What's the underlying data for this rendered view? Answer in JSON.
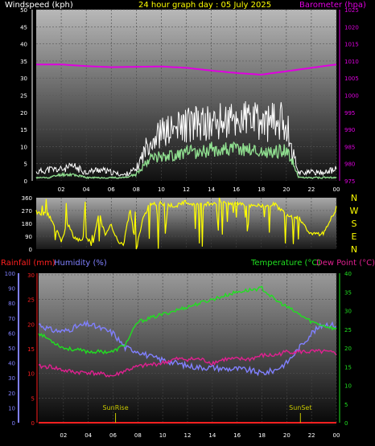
{
  "colors": {
    "background": "#000000",
    "wind_label": "#ffffff",
    "gust": "#ffffff",
    "wind_avg": "#90e090",
    "baro": "#e000e0",
    "title": "#ffff00",
    "direction": "#ffff00",
    "rain": "#ff2020",
    "humidity": "#8080ff",
    "temperature": "#20e020",
    "dewpoint": "#e02090",
    "sun_marker": "#c8c800"
  },
  "chart_data": [
    {
      "id": "wind_baro",
      "type": "line",
      "title": "24 hour graph day : 05 July 2025",
      "left_axis_label": "Windspeed (kph)",
      "right_axis_label": "Barometer (hpa)",
      "x_tick_labels": [
        "02",
        "04",
        "06",
        "08",
        "10",
        "12",
        "14",
        "16",
        "18",
        "20",
        "22",
        "00"
      ],
      "y_left_ticks": [
        "0",
        "5",
        "10",
        "15",
        "20",
        "25",
        "30",
        "35",
        "40",
        "45",
        "50"
      ],
      "y_right_ticks": [
        "975",
        "980",
        "985",
        "990",
        "995",
        "1000",
        "1005",
        "1010",
        "1015",
        "1020",
        "1025"
      ],
      "ylim_left": [
        0,
        50
      ],
      "ylim_right": [
        975,
        1025
      ],
      "xlim": [
        0,
        24
      ],
      "series": [
        {
          "name": "Gust",
          "axis": "left",
          "x": [
            0,
            1,
            2,
            3,
            4,
            5,
            6,
            7,
            8,
            9,
            10,
            11,
            12,
            13,
            14,
            15,
            16,
            17,
            18,
            19,
            20,
            20.5,
            21,
            22,
            23,
            24
          ],
          "values": [
            3,
            4,
            4,
            5,
            3,
            4,
            3,
            2,
            4,
            14,
            17,
            18,
            20,
            20,
            20,
            21,
            21,
            22,
            20,
            21,
            21,
            10,
            3,
            3,
            3,
            4
          ]
        },
        {
          "name": "Average",
          "axis": "left",
          "x": [
            0,
            1,
            2,
            3,
            4,
            5,
            6,
            7,
            8,
            9,
            10,
            11,
            12,
            13,
            14,
            15,
            16,
            17,
            18,
            19,
            20,
            20.5,
            21,
            22,
            23,
            24
          ],
          "values": [
            1,
            1,
            2,
            2,
            1,
            1,
            1,
            1,
            2,
            7,
            8,
            8,
            9,
            9,
            10,
            10,
            10,
            10,
            9,
            9,
            10,
            6,
            1,
            1,
            1,
            1
          ]
        },
        {
          "name": "Barometer",
          "axis": "right",
          "x": [
            0,
            2,
            4,
            6,
            8,
            10,
            12,
            14,
            16,
            18,
            20,
            22,
            24
          ],
          "values": [
            1009,
            1009,
            1008.5,
            1008.2,
            1008.3,
            1008.4,
            1008,
            1007.2,
            1006.5,
            1006,
            1007,
            1008,
            1009
          ]
        }
      ]
    },
    {
      "id": "direction",
      "type": "line",
      "right_axis_labels": [
        "N",
        "W",
        "S",
        "E",
        "N"
      ],
      "y_ticks": [
        "0",
        "90",
        "180",
        "270",
        "360"
      ],
      "ylim": [
        0,
        360
      ],
      "xlim": [
        0,
        24
      ],
      "series": [
        {
          "name": "Wind direction",
          "x": [
            0,
            0.5,
            1,
            1.5,
            2,
            2.5,
            3,
            3.5,
            4,
            4.5,
            5,
            5.5,
            6,
            6.5,
            7,
            7.5,
            8,
            8.5,
            9,
            10,
            11,
            12,
            13,
            14,
            15,
            16,
            17,
            18,
            19,
            20,
            20.5,
            21,
            22,
            23,
            24
          ],
          "values": [
            260,
            250,
            240,
            150,
            60,
            180,
            80,
            60,
            90,
            20,
            260,
            100,
            170,
            60,
            40,
            280,
            0,
            200,
            310,
            320,
            300,
            330,
            310,
            320,
            330,
            320,
            310,
            300,
            320,
            240,
            230,
            220,
            100,
            110,
            290
          ]
        }
      ]
    },
    {
      "id": "temp_hum",
      "type": "line",
      "left_axis_labels": [
        "Rainfall (mm)",
        "Humidity (%)"
      ],
      "right_axis_labels": [
        "Temperature (°C)",
        "Dew Point (°C)"
      ],
      "x_tick_labels": [
        "02",
        "04",
        "06",
        "08",
        "10",
        "12",
        "14",
        "16",
        "18",
        "20",
        "22",
        "00"
      ],
      "y_humidity_ticks": [
        "0",
        "10",
        "20",
        "30",
        "40",
        "50",
        "60",
        "70",
        "80",
        "90",
        "100"
      ],
      "y_rain_ticks": [
        "0",
        "5",
        "10",
        "15",
        "20",
        "25",
        "30"
      ],
      "y_temp_ticks": [
        "0",
        "5",
        "10",
        "15",
        "20",
        "25",
        "30",
        "35",
        "40"
      ],
      "ylim_humidity": [
        0,
        100
      ],
      "ylim_rain": [
        0,
        30
      ],
      "ylim_temp": [
        0,
        40
      ],
      "annotations": [
        {
          "text": "SunRise",
          "x": 6.2
        },
        {
          "text": "SunSet",
          "x": 21.1
        }
      ],
      "series": [
        {
          "name": "Humidity",
          "axis": "humidity",
          "x": [
            0,
            1,
            2,
            3,
            4,
            5,
            6,
            7,
            8,
            9,
            10,
            11,
            12,
            13,
            14,
            15,
            16,
            17,
            18,
            19,
            20,
            21,
            22,
            23,
            24
          ],
          "values": [
            66,
            62,
            61,
            64,
            66,
            63,
            60,
            50,
            48,
            44,
            42,
            40,
            38,
            37,
            37,
            36,
            36,
            35,
            33,
            35,
            40,
            50,
            60,
            66,
            65
          ]
        },
        {
          "name": "Rainfall",
          "axis": "rain",
          "x": [
            0,
            24
          ],
          "values": [
            0,
            0
          ]
        },
        {
          "name": "Temperature",
          "axis": "temp",
          "x": [
            0,
            1,
            2,
            3,
            4,
            5,
            6,
            7,
            8,
            9,
            10,
            11,
            12,
            13,
            14,
            15,
            16,
            17,
            18,
            19,
            20,
            21,
            22,
            23,
            24
          ],
          "values": [
            24,
            22,
            20,
            19.5,
            19,
            19,
            19,
            21,
            27,
            28,
            29,
            30,
            31,
            32,
            33,
            34,
            35,
            35.5,
            36,
            33,
            31,
            29,
            27,
            26,
            25
          ]
        },
        {
          "name": "Dew Point",
          "axis": "temp",
          "x": [
            0,
            1,
            2,
            3,
            4,
            5,
            6,
            7,
            8,
            9,
            10,
            11,
            12,
            13,
            14,
            15,
            16,
            17,
            18,
            19,
            20,
            21,
            22,
            23,
            24
          ],
          "values": [
            15,
            15,
            14,
            13.5,
            13.5,
            13,
            12.5,
            14,
            15,
            15.5,
            16,
            17,
            17,
            17,
            16,
            17,
            17,
            17,
            18,
            18,
            19,
            19,
            19,
            19,
            18.5
          ]
        }
      ]
    }
  ]
}
